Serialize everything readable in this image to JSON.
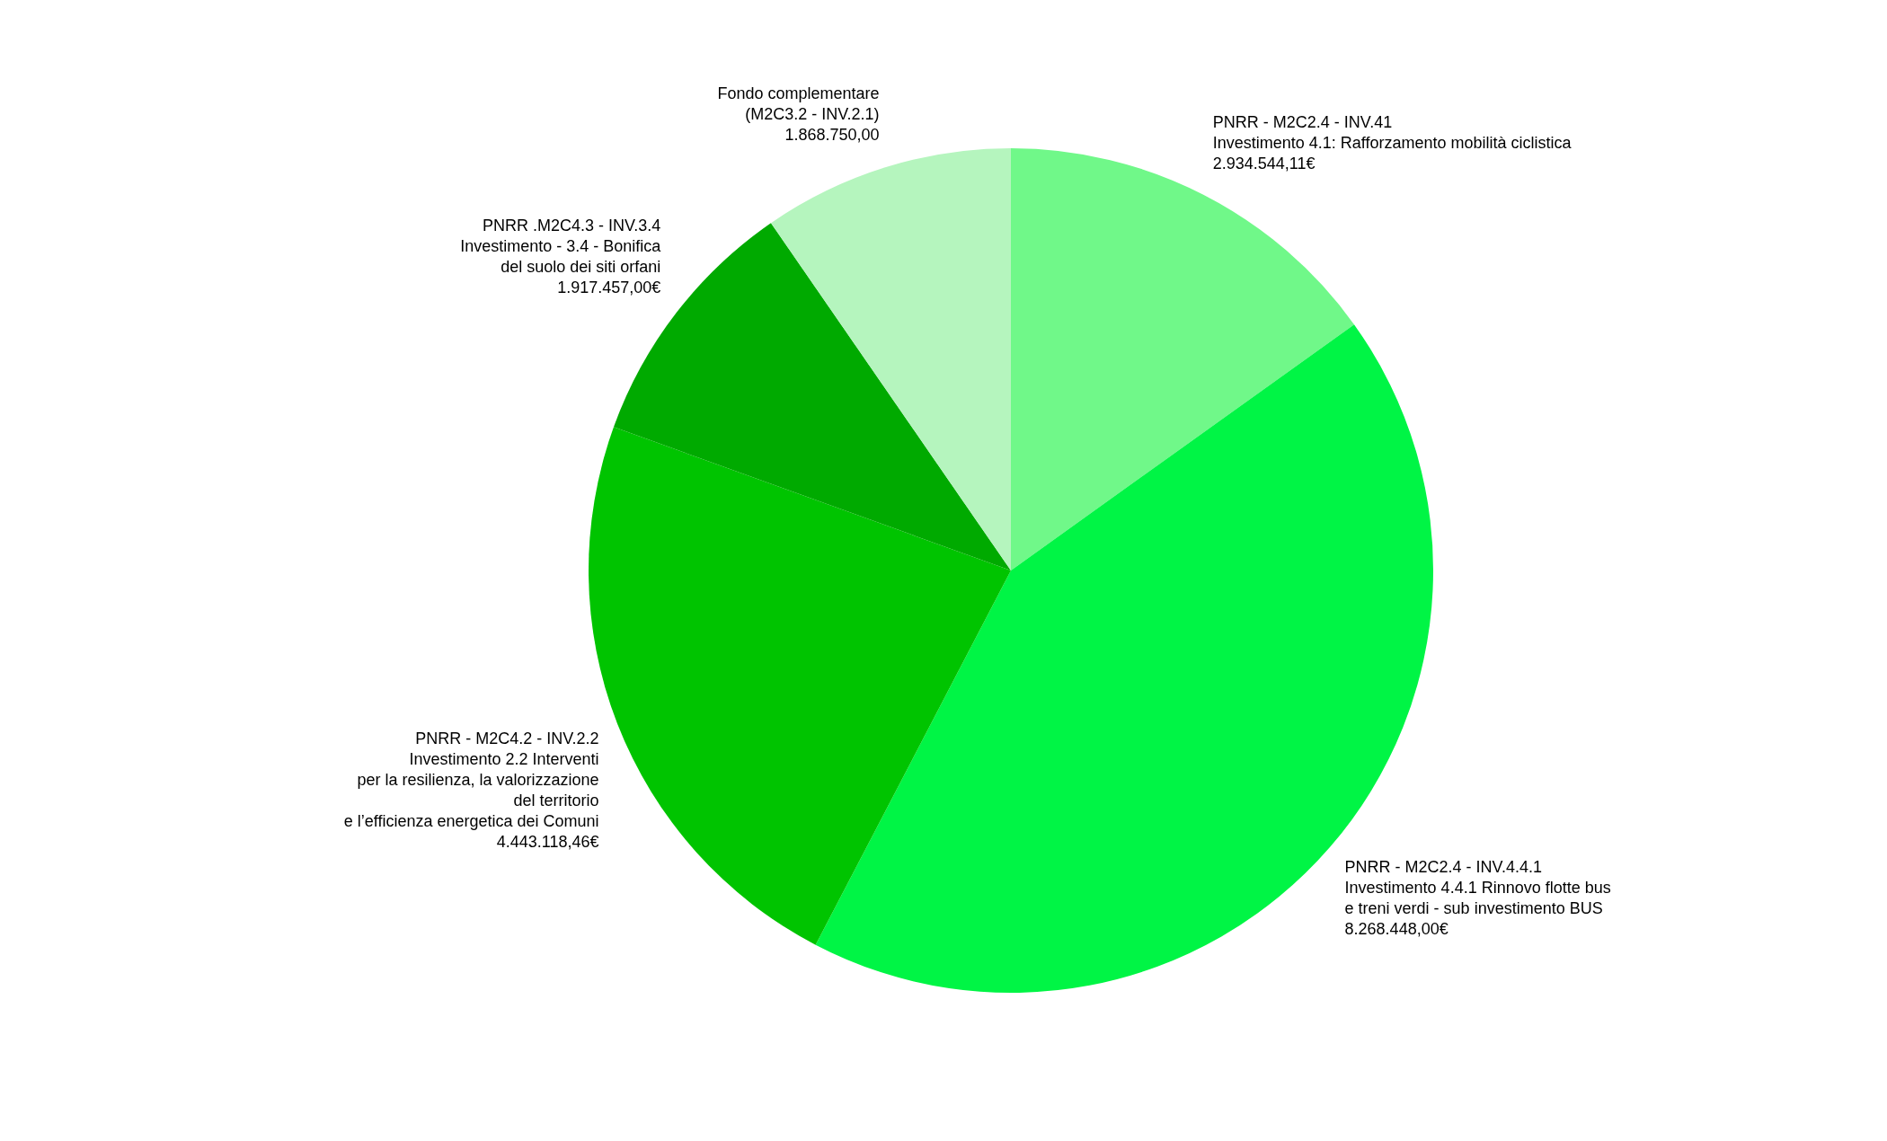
{
  "chart_data": {
    "type": "pie",
    "categories": [
      "PNRR - M2C2.4 - INV.41\nInvestimento 4.1: Rafforzamento mobilità ciclistica",
      "PNRR - M2C2.4 - INV.4.4.1\nInvestimento 4.4.1 Rinnovo flotte bus\ne treni verdi - sub investimento BUS",
      "PNRR - M2C4.2 - INV.2.2\nInvestimento 2.2 Interventi\nper la resilienza, la valorizzazione\ndel territorio\ne l’efficienza energetica dei Comuni",
      "PNRR .M2C4.3 - INV.3.4\nInvestimento - 3.4 - Bonifica\ndel suolo dei siti orfani",
      "Fondo complementare\n(M2C3.2 - INV.2.1)"
    ],
    "values": [
      2934544.11,
      8268448.0,
      4443118.46,
      1917457.0,
      1868750.0
    ],
    "value_labels": [
      "2.934.544,11€",
      "8.268.448,00€",
      "4.443.118,46€",
      "1.917.457,00€",
      "1.868.750,00"
    ],
    "colors": [
      "#70f889",
      "#00f545",
      "#00c400",
      "#00aa00",
      "#b5f5be"
    ]
  }
}
